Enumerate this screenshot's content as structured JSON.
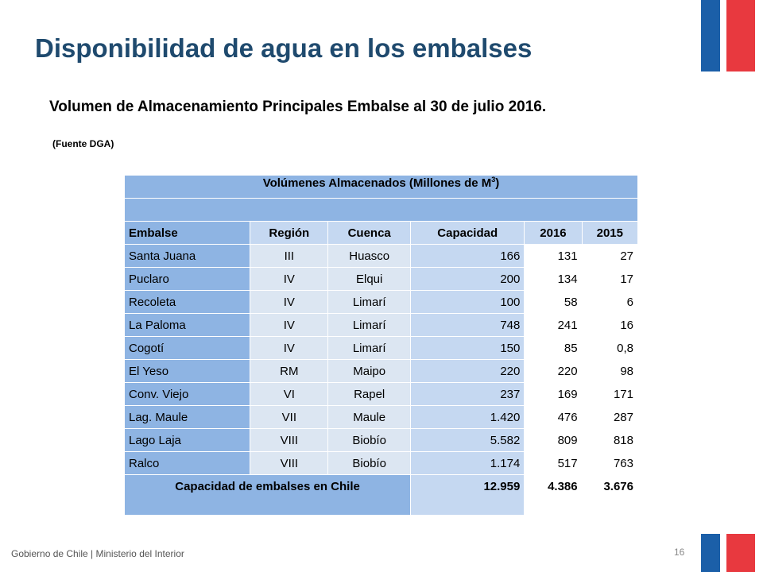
{
  "title": "Disponibilidad de agua en los embalses",
  "subtitle": "Volumen de Almacenamiento Principales Embalse al 30 de julio 2016.",
  "source": "(Fuente DGA)",
  "table": {
    "header_text": "Volúmenes Almacenados (Millones de M",
    "header_sup": "3",
    "header_close": ")",
    "columns": [
      "Embalse",
      "Región",
      "Cuenca",
      "Capacidad",
      "2016",
      "2015"
    ],
    "rows": [
      {
        "embalse": "Santa Juana",
        "region": "III",
        "cuenca": "Huasco",
        "capacidad": "166",
        "y2016": "131",
        "y2015": "27"
      },
      {
        "embalse": "Puclaro",
        "region": "IV",
        "cuenca": "Elqui",
        "capacidad": "200",
        "y2016": "134",
        "y2015": "17"
      },
      {
        "embalse": "Recoleta",
        "region": "IV",
        "cuenca": "Limarí",
        "capacidad": "100",
        "y2016": "58",
        "y2015": "6"
      },
      {
        "embalse": "La Paloma",
        "region": "IV",
        "cuenca": "Limarí",
        "capacidad": "748",
        "y2016": "241",
        "y2015": "16"
      },
      {
        "embalse": "Cogotí",
        "region": "IV",
        "cuenca": "Limarí",
        "capacidad": "150",
        "y2016": "85",
        "y2015": "0,8"
      },
      {
        "embalse": "El Yeso",
        "region": "RM",
        "cuenca": "Maipo",
        "capacidad": "220",
        "y2016": "220",
        "y2015": "98"
      },
      {
        "embalse": "Conv. Viejo",
        "region": "VI",
        "cuenca": "Rapel",
        "capacidad": "237",
        "y2016": "169",
        "y2015": "171"
      },
      {
        "embalse": "Lag. Maule",
        "region": "VII",
        "cuenca": "Maule",
        "capacidad": "1.420",
        "y2016": "476",
        "y2015": "287"
      },
      {
        "embalse": "Lago Laja",
        "region": "VIII",
        "cuenca": "Biobío",
        "capacidad": "5.582",
        "y2016": "809",
        "y2015": "818"
      },
      {
        "embalse": "Ralco",
        "region": "VIII",
        "cuenca": "Biobío",
        "capacidad": "1.174",
        "y2016": "517",
        "y2015": "763"
      }
    ],
    "total": {
      "label": "Capacidad de embalses en Chile",
      "capacidad": "12.959",
      "y2016": "4.386",
      "y2015": "3.676"
    }
  },
  "footer": "Gobierno de Chile | Ministerio del Interior",
  "page_number": "16",
  "colors": {
    "flag_blue": "#1b5fa8",
    "flag_red": "#e8393f",
    "title": "#1f4a6e",
    "header_blue": "#8eb4e3"
  }
}
